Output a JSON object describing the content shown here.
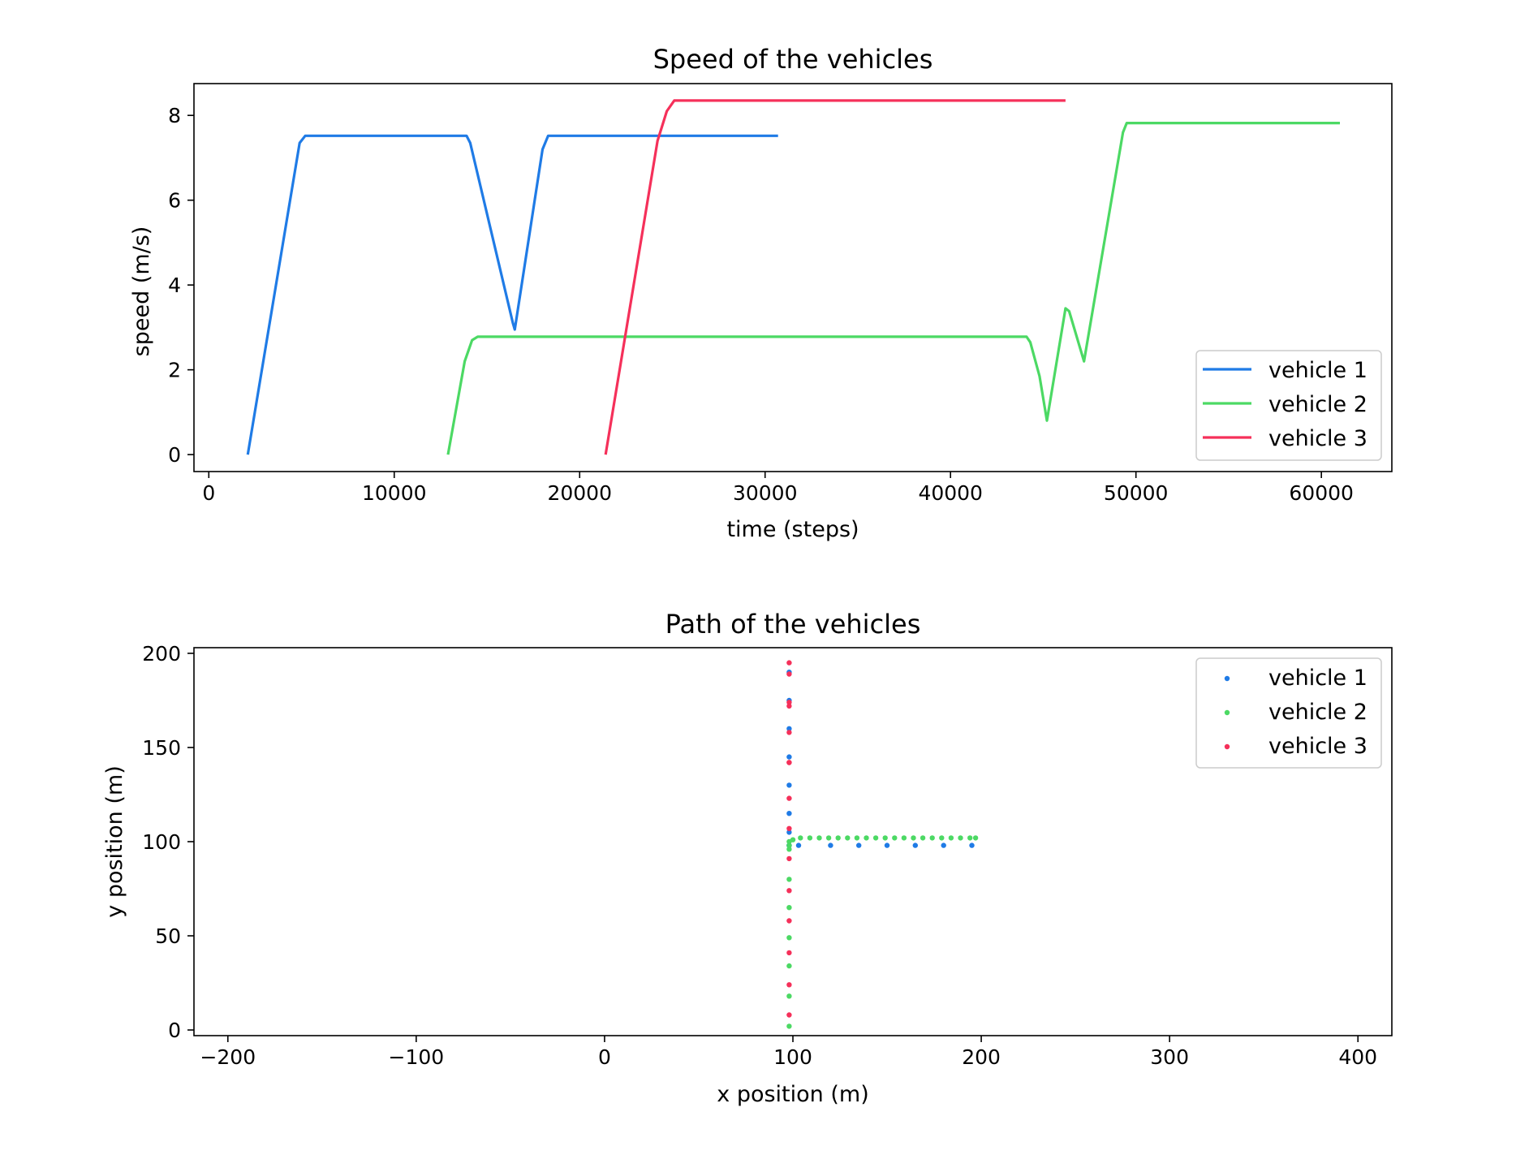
{
  "chart_data": [
    {
      "type": "line",
      "title": "Speed of the vehicles",
      "xlabel": "time (steps)",
      "ylabel": "speed (m/s)",
      "xlim": [
        -800,
        63800
      ],
      "ylim": [
        -0.4,
        8.75
      ],
      "xticks": [
        0,
        10000,
        20000,
        30000,
        40000,
        50000,
        60000
      ],
      "xtick_labels": [
        "0",
        "10000",
        "20000",
        "30000",
        "40000",
        "50000",
        "60000"
      ],
      "yticks": [
        0,
        2,
        4,
        6,
        8
      ],
      "ytick_labels": [
        "0",
        "2",
        "4",
        "6",
        "8"
      ],
      "grid": false,
      "legend_position": "lower right",
      "series": [
        {
          "name": "vehicle 1",
          "color": "#1f7be6",
          "x": [
            2100,
            4900,
            5200,
            13900,
            14100,
            16400,
            16500,
            18000,
            18300,
            30700
          ],
          "y": [
            0,
            7.35,
            7.52,
            7.52,
            7.35,
            3.1,
            2.95,
            7.2,
            7.52,
            7.52
          ]
        },
        {
          "name": "vehicle 2",
          "color": "#4cd964",
          "x": [
            12900,
            13800,
            14200,
            14500,
            44100,
            44300,
            44800,
            45200,
            46200,
            46400,
            47200,
            49300,
            49500,
            61000
          ],
          "y": [
            0,
            2.2,
            2.7,
            2.78,
            2.78,
            2.65,
            1.85,
            0.8,
            3.45,
            3.38,
            2.2,
            7.6,
            7.82,
            7.82
          ]
        },
        {
          "name": "vehicle 3",
          "color": "#f5305a",
          "x": [
            21400,
            24200,
            24700,
            25100,
            46200
          ],
          "y": [
            0,
            7.4,
            8.1,
            8.35,
            8.35
          ]
        }
      ]
    },
    {
      "type": "scatter",
      "title": "Path of the vehicles",
      "xlabel": "x position (m)",
      "ylabel": "y position (m)",
      "xlim": [
        -218,
        418
      ],
      "ylim": [
        -3,
        203
      ],
      "xticks": [
        -200,
        -100,
        0,
        100,
        200,
        300,
        400
      ],
      "xtick_labels": [
        "−200",
        "−100",
        "0",
        "100",
        "200",
        "300",
        "400"
      ],
      "yticks": [
        0,
        50,
        100,
        150,
        200
      ],
      "ytick_labels": [
        "0",
        "50",
        "100",
        "150",
        "200"
      ],
      "grid": false,
      "legend_position": "upper right",
      "series": [
        {
          "name": "vehicle 1",
          "color": "#1f7be6",
          "x": [
            98,
            98,
            98,
            98,
            98,
            98,
            98,
            98,
            98,
            98,
            103,
            120,
            135,
            150,
            165,
            180,
            195
          ],
          "y": [
            190,
            175,
            160,
            145,
            130,
            115,
            105,
            98,
            98,
            98,
            98,
            98,
            98,
            98,
            98,
            98,
            98
          ]
        },
        {
          "name": "vehicle 2",
          "color": "#4cd964",
          "x": [
            98,
            98,
            98,
            98,
            98,
            98,
            98,
            98,
            98,
            100,
            104,
            109,
            114,
            119,
            124,
            129,
            134,
            139,
            144,
            149,
            154,
            159,
            164,
            169,
            174,
            179,
            184,
            189,
            194,
            197
          ],
          "y": [
            2,
            18,
            34,
            49,
            65,
            80,
            96,
            98,
            100,
            101,
            102,
            102,
            102,
            102,
            102,
            102,
            102,
            102,
            102,
            102,
            102,
            102,
            102,
            102,
            102,
            102,
            102,
            102,
            102,
            102
          ]
        },
        {
          "name": "vehicle 3",
          "color": "#f5305a",
          "x": [
            98,
            98,
            98,
            98,
            98,
            98,
            98,
            98,
            98,
            98,
            98,
            98,
            98,
            98,
            98
          ],
          "y": [
            195,
            189,
            174,
            158,
            142,
            123,
            107,
            91,
            74,
            58,
            41,
            24,
            8,
            172,
            142
          ]
        }
      ]
    }
  ]
}
